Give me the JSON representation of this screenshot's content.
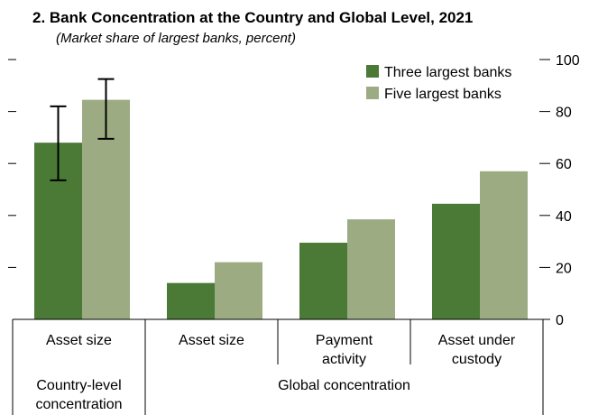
{
  "chart_data": {
    "type": "bar",
    "title": "2. Bank Concentration at the Country and Global Level, 2021",
    "subtitle": "(Market share of largest banks, percent)",
    "categories": [
      {
        "label": [
          "Asset size"
        ],
        "group": "country"
      },
      {
        "label": [
          "Asset size"
        ],
        "group": "global"
      },
      {
        "label": [
          "Payment",
          "activity"
        ],
        "group": "global"
      },
      {
        "label": [
          "Asset under",
          "custody"
        ],
        "group": "global"
      }
    ],
    "groups": [
      {
        "id": "country",
        "label": [
          "Country-level",
          "concentration"
        ]
      },
      {
        "id": "global",
        "label": [
          "Global concentration"
        ]
      }
    ],
    "series": [
      {
        "name": "Three largest banks",
        "color": "#4a7a36",
        "values": [
          68,
          14,
          29.5,
          44.5
        ]
      },
      {
        "name": "Five largest banks",
        "color": "#9dab83",
        "values": [
          84.5,
          22,
          38.5,
          57
        ]
      }
    ],
    "error_bars": [
      {
        "series": 0,
        "category": 0,
        "low": 53.5,
        "high": 82
      },
      {
        "series": 1,
        "category": 0,
        "low": 69.5,
        "high": 92.5
      }
    ],
    "ylim": [
      0,
      100
    ],
    "yticks": [
      0,
      20,
      40,
      60,
      80,
      100
    ],
    "right_axis_labels": true,
    "left_axis_tick_marks_only": true,
    "legend_position": "top-right",
    "grid": false
  }
}
